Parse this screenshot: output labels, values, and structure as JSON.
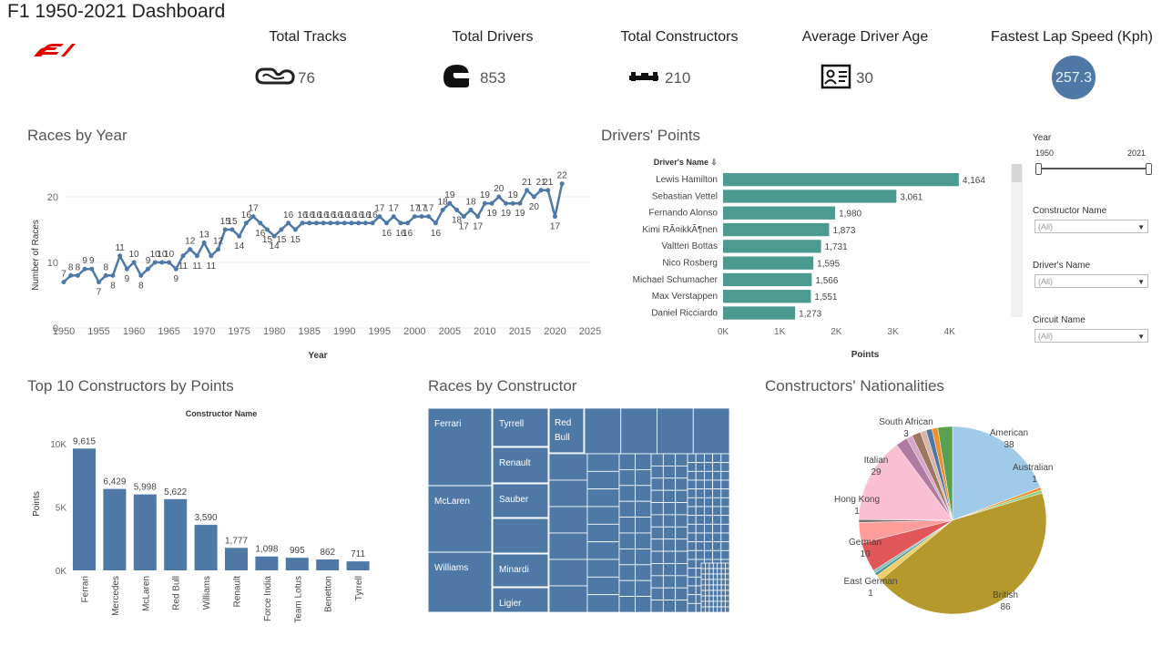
{
  "dashboard_title": "F1 1950-2021 Dashboard",
  "kpis": [
    {
      "label": "Total Tracks",
      "value": "76",
      "icon": "track-icon"
    },
    {
      "label": "Total Drivers",
      "value": "853",
      "icon": "helmet-icon"
    },
    {
      "label": "Total Constructors",
      "value": "210",
      "icon": "car-icon"
    },
    {
      "label": "Average Driver Age",
      "value": "30",
      "icon": "id-card-icon"
    },
    {
      "label": "Fastest Lap Speed (Kph)",
      "value": "257.3",
      "icon": "speed-circle"
    }
  ],
  "filters": {
    "year": {
      "label": "Year",
      "min": "1950",
      "max": "2021"
    },
    "constructor": {
      "label": "Constructor Name",
      "value": "(All)"
    },
    "driver": {
      "label": "Driver's Name",
      "value": "(All)"
    },
    "circuit": {
      "label": "Circuit Name",
      "value": "(All)"
    }
  },
  "colors": {
    "primary": "#4e79a7",
    "teal": "#4a9a8f"
  },
  "chart_data": [
    {
      "type": "line",
      "title": "Races by Year",
      "xlabel": "Year",
      "ylabel": "Number of Races",
      "x": [
        1950,
        1951,
        1952,
        1953,
        1954,
        1955,
        1956,
        1957,
        1958,
        1959,
        1960,
        1961,
        1962,
        1963,
        1964,
        1965,
        1966,
        1967,
        1968,
        1969,
        1970,
        1971,
        1972,
        1973,
        1974,
        1975,
        1976,
        1977,
        1978,
        1979,
        1980,
        1981,
        1982,
        1983,
        1984,
        1985,
        1986,
        1987,
        1988,
        1989,
        1990,
        1991,
        1992,
        1993,
        1994,
        1995,
        1996,
        1997,
        1998,
        1999,
        2000,
        2001,
        2002,
        2003,
        2004,
        2005,
        2006,
        2007,
        2008,
        2009,
        2010,
        2011,
        2012,
        2013,
        2014,
        2015,
        2016,
        2017,
        2018,
        2019,
        2020,
        2021
      ],
      "values": [
        7,
        8,
        8,
        9,
        9,
        7,
        8,
        8,
        11,
        9,
        10,
        8,
        9,
        10,
        10,
        10,
        9,
        11,
        12,
        11,
        13,
        11,
        12,
        15,
        15,
        14,
        16,
        17,
        16,
        15,
        14,
        15,
        16,
        15,
        16,
        16,
        16,
        16,
        16,
        16,
        16,
        16,
        16,
        16,
        16,
        17,
        16,
        17,
        16,
        16,
        17,
        17,
        17,
        16,
        18,
        19,
        18,
        17,
        18,
        17,
        19,
        19,
        20,
        19,
        19,
        19,
        21,
        20,
        21,
        21,
        17,
        22
      ],
      "xticks": [
        1950,
        1955,
        1960,
        1965,
        1970,
        1975,
        1980,
        1985,
        1990,
        1995,
        2000,
        2005,
        2010,
        2015,
        2020,
        2025
      ],
      "yticks": [
        0,
        10,
        20
      ],
      "xlim": [
        1950,
        2025
      ],
      "ylim": [
        0,
        25
      ]
    },
    {
      "type": "bar",
      "title": "Drivers' Points",
      "category_header": "Driver's Name",
      "xlabel": "Points",
      "categories": [
        "Lewis Hamilton",
        "Sebastian Vettel",
        "Fernando Alonso",
        "Kimi RÃ¤ikkÃ¶nen",
        "Valtteri Bottas",
        "Nico Rosberg",
        "Michael Schumacher",
        "Max Verstappen",
        "Daniel Ricciardo"
      ],
      "values": [
        4164,
        3061,
        1980,
        1873,
        1731,
        1595,
        1566,
        1551,
        1273
      ],
      "value_labels": [
        "4,164",
        "3,061",
        "1,980",
        "1,873",
        "1,731",
        "1,595",
        "1,566",
        "1,551",
        "1,273"
      ],
      "xticks": [
        0,
        1000,
        2000,
        3000,
        4000
      ],
      "xtick_labels": [
        "0K",
        "1K",
        "2K",
        "3K",
        "4K"
      ],
      "xlim": [
        0,
        4600
      ]
    },
    {
      "type": "bar",
      "title": "Top 10 Constructors by Points",
      "header": "Constructor Name",
      "ylabel": "Points",
      "categories": [
        "Ferrari",
        "Mercedes",
        "McLaren",
        "Red Bull",
        "Williams",
        "Renault",
        "Force India",
        "Team Lotus",
        "Benetton",
        "Tyrrell"
      ],
      "values": [
        9615,
        6429,
        5998,
        5622,
        3590,
        1777,
        1098,
        995,
        862,
        711
      ],
      "value_labels": [
        "9,615",
        "6,429",
        "5,998",
        "5,622",
        "3,590",
        "1,777",
        "1,098",
        "995",
        "862",
        "711"
      ],
      "yticks": [
        0,
        5000,
        10000
      ],
      "ytick_labels": [
        "0K",
        "5K",
        "10K"
      ],
      "ylim": [
        0,
        10500
      ]
    },
    {
      "type": "treemap",
      "title": "Races by Constructor",
      "labels": [
        "Ferrari",
        "McLaren",
        "Williams",
        "Tyrrell",
        "Renault",
        "Sauber",
        "Minardi",
        "Ligier",
        "Red Bull"
      ]
    },
    {
      "type": "pie",
      "title": "Constructors' Nationalities",
      "slices": [
        {
          "name": "American",
          "value": 38,
          "color": "#a0cbe8"
        },
        {
          "name": "Australian",
          "value": 1,
          "color": "#f28e2b"
        },
        {
          "name": "",
          "value": 1,
          "color": "#8cd17d"
        },
        {
          "name": "British",
          "value": 86,
          "color": "#b6992d"
        },
        {
          "name": "",
          "value": 2,
          "color": "#f1ce63"
        },
        {
          "name": "",
          "value": 1,
          "color": "#499894"
        },
        {
          "name": "East German",
          "value": 1,
          "color": "#86bcb6"
        },
        {
          "name": "German",
          "value": 10,
          "color": "#e15759"
        },
        {
          "name": "",
          "value": 7,
          "color": "#ff9d9a"
        },
        {
          "name": "Hong Kong",
          "value": 1,
          "color": "#79706e"
        },
        {
          "name": "Italian",
          "value": 29,
          "color": "#fabfd2"
        },
        {
          "name": "",
          "value": 4,
          "color": "#b07aa1"
        },
        {
          "name": "",
          "value": 2,
          "color": "#d4a6c8"
        },
        {
          "name": "South African",
          "value": 3,
          "color": "#9d7660"
        },
        {
          "name": "",
          "value": 2,
          "color": "#d7b5a6"
        },
        {
          "name": "",
          "value": 2,
          "color": "#4e79a7"
        },
        {
          "name": "",
          "value": 2,
          "color": "#f28e2b"
        },
        {
          "name": "",
          "value": 5,
          "color": "#59a14f"
        }
      ],
      "labels": [
        {
          "name": "South African",
          "value": "3"
        },
        {
          "name": "American",
          "value": "38"
        },
        {
          "name": "Australian",
          "value": "1"
        },
        {
          "name": "Italian",
          "value": "29"
        },
        {
          "name": "Hong Kong",
          "value": "1"
        },
        {
          "name": "German",
          "value": "10"
        },
        {
          "name": "East German",
          "value": "1"
        },
        {
          "name": "British",
          "value": "86"
        }
      ]
    }
  ]
}
